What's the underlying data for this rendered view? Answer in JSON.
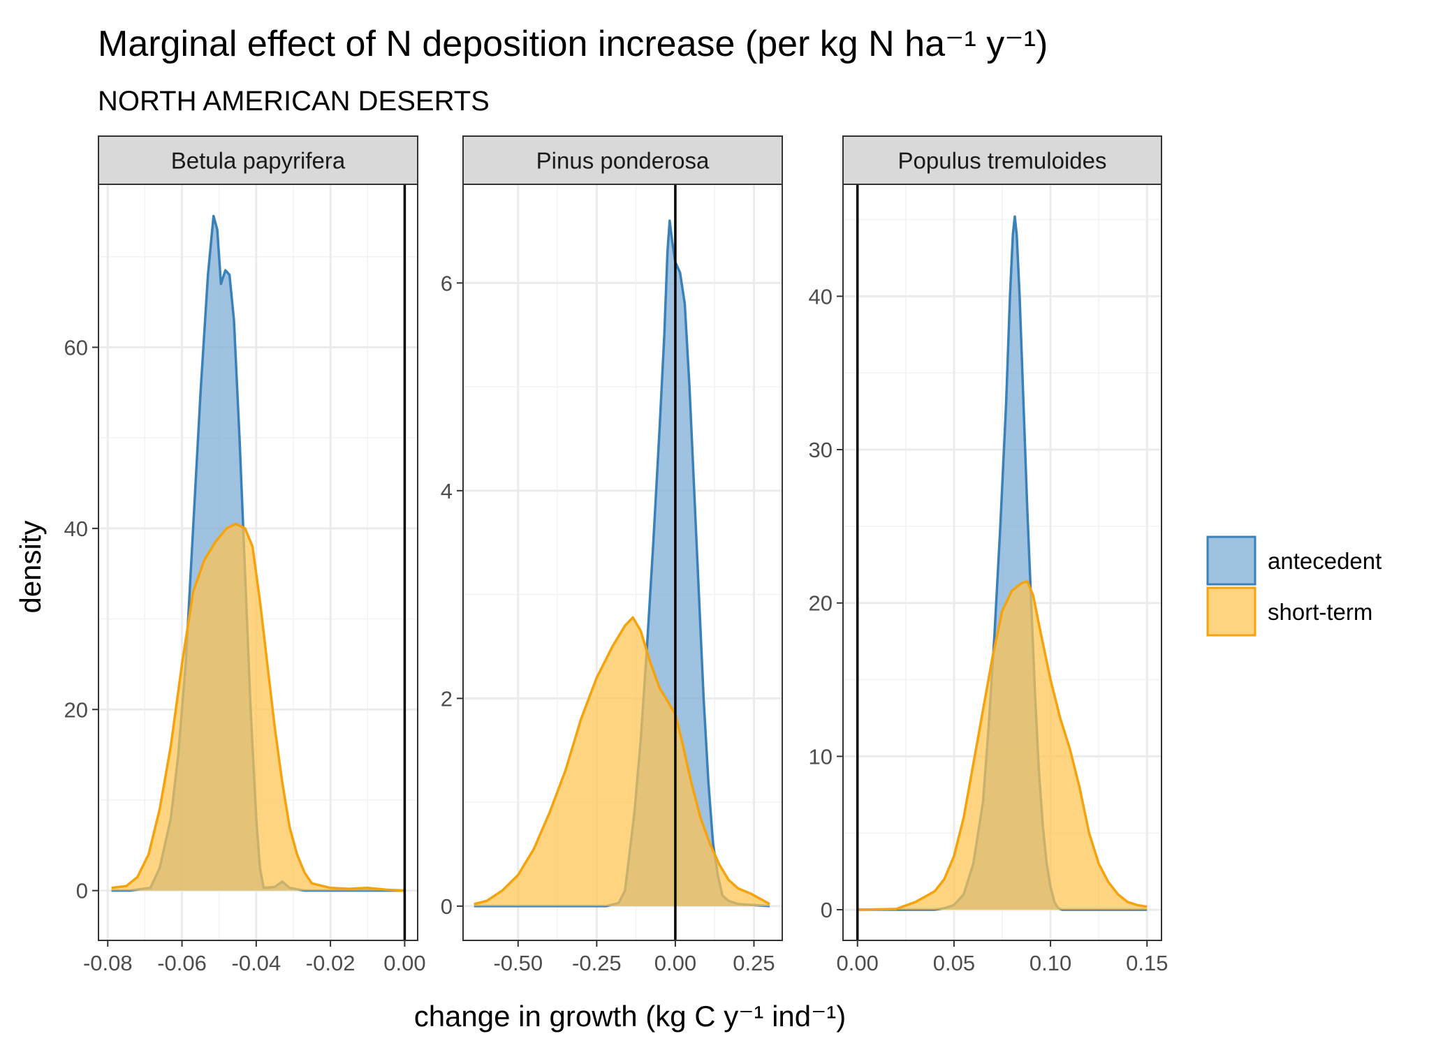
{
  "chart_data": {
    "type": "area",
    "subtype": "faceted density plot",
    "title": "Marginal effect of N deposition increase (per kg N ha⁻¹ y⁻¹)",
    "subtitle": "NORTH AMERICAN DESERTS",
    "xlabel": "change in growth (kg C y⁻¹ ind⁻¹)",
    "ylabel": "density",
    "grid": true,
    "legend_position": "right",
    "reference_line_x": 0,
    "legend": [
      {
        "name": "antecedent",
        "fill": "#7aaad6",
        "stroke": "#3a80b9"
      },
      {
        "name": "short-term",
        "fill": "#ffc34f",
        "stroke": "#f5a20c"
      }
    ],
    "panels": [
      {
        "label": "Betula papyrifera",
        "xlim": [
          -0.0825,
          0.0035
        ],
        "ylim": [
          -5.5,
          78
        ],
        "xticks": [
          {
            "v": -0.08,
            "t": "-0.08"
          },
          {
            "v": -0.06,
            "t": "-0.06"
          },
          {
            "v": -0.04,
            "t": "-0.04"
          },
          {
            "v": -0.02,
            "t": "-0.02"
          },
          {
            "v": 0.0,
            "t": "0.00"
          }
        ],
        "yticks": [
          {
            "v": 0,
            "t": "0"
          },
          {
            "v": 20,
            "t": "20"
          },
          {
            "v": 40,
            "t": "40"
          },
          {
            "v": 60,
            "t": "60"
          }
        ],
        "series": [
          {
            "name": "antecedent",
            "points": [
              [
                -0.079,
                0
              ],
              [
                -0.074,
                0
              ],
              [
                -0.0685,
                0.3
              ],
              [
                -0.066,
                2.5
              ],
              [
                -0.063,
                8
              ],
              [
                -0.061,
                15
              ],
              [
                -0.059,
                25
              ],
              [
                -0.057,
                40
              ],
              [
                -0.055,
                55
              ],
              [
                -0.053,
                68
              ],
              [
                -0.0515,
                74.5
              ],
              [
                -0.0505,
                73
              ],
              [
                -0.0495,
                67
              ],
              [
                -0.0483,
                68.5
              ],
              [
                -0.0472,
                68
              ],
              [
                -0.046,
                63
              ],
              [
                -0.0445,
                50
              ],
              [
                -0.043,
                35
              ],
              [
                -0.0415,
                20
              ],
              [
                -0.04,
                8
              ],
              [
                -0.039,
                2.5
              ],
              [
                -0.038,
                0.3
              ],
              [
                -0.035,
                0.4
              ],
              [
                -0.033,
                1
              ],
              [
                -0.031,
                0.3
              ],
              [
                -0.027,
                0
              ],
              [
                0.0,
                0
              ]
            ]
          },
          {
            "name": "short-term",
            "points": [
              [
                -0.079,
                0.3
              ],
              [
                -0.075,
                0.5
              ],
              [
                -0.072,
                1.5
              ],
              [
                -0.069,
                4
              ],
              [
                -0.066,
                9
              ],
              [
                -0.063,
                16
              ],
              [
                -0.06,
                25
              ],
              [
                -0.057,
                33
              ],
              [
                -0.054,
                36.5
              ],
              [
                -0.051,
                38.5
              ],
              [
                -0.048,
                40
              ],
              [
                -0.0455,
                40.5
              ],
              [
                -0.043,
                40
              ],
              [
                -0.041,
                38
              ],
              [
                -0.039,
                32
              ],
              [
                -0.037,
                25
              ],
              [
                -0.035,
                18
              ],
              [
                -0.033,
                12
              ],
              [
                -0.031,
                7
              ],
              [
                -0.029,
                4
              ],
              [
                -0.027,
                2
              ],
              [
                -0.025,
                0.8
              ],
              [
                -0.02,
                0.3
              ],
              [
                -0.015,
                0.2
              ],
              [
                -0.01,
                0.3
              ],
              [
                -0.005,
                0.1
              ],
              [
                0.0,
                0
              ]
            ]
          }
        ]
      },
      {
        "label": "Pinus ponderosa",
        "xlim": [
          -0.675,
          0.34
        ],
        "ylim": [
          -0.33,
          6.95
        ],
        "xticks": [
          {
            "v": -0.5,
            "t": "-0.50"
          },
          {
            "v": -0.25,
            "t": "-0.25"
          },
          {
            "v": 0.0,
            "t": "0.00"
          },
          {
            "v": 0.25,
            "t": "0.25"
          }
        ],
        "yticks": [
          {
            "v": 0,
            "t": "0"
          },
          {
            "v": 2,
            "t": "2"
          },
          {
            "v": 4,
            "t": "4"
          },
          {
            "v": 6,
            "t": "6"
          }
        ],
        "series": [
          {
            "name": "antecedent",
            "points": [
              [
                -0.64,
                0
              ],
              [
                -0.3,
                0
              ],
              [
                -0.22,
                0
              ],
              [
                -0.18,
                0.03
              ],
              [
                -0.16,
                0.15
              ],
              [
                -0.15,
                0.4
              ],
              [
                -0.13,
                0.9
              ],
              [
                -0.11,
                1.6
              ],
              [
                -0.09,
                2.5
              ],
              [
                -0.07,
                3.5
              ],
              [
                -0.05,
                4.6
              ],
              [
                -0.035,
                5.5
              ],
              [
                -0.025,
                6.3
              ],
              [
                -0.018,
                6.6
              ],
              [
                -0.01,
                6.4
              ],
              [
                0.0,
                6.2
              ],
              [
                0.015,
                6.1
              ],
              [
                0.03,
                5.8
              ],
              [
                0.045,
                5.0
              ],
              [
                0.06,
                4.0
              ],
              [
                0.075,
                3.0
              ],
              [
                0.09,
                2.0
              ],
              [
                0.105,
                1.2
              ],
              [
                0.12,
                0.6
              ],
              [
                0.135,
                0.3
              ],
              [
                0.15,
                0.1
              ],
              [
                0.17,
                0.05
              ],
              [
                0.2,
                0.02
              ],
              [
                0.3,
                0
              ]
            ]
          },
          {
            "name": "short-term",
            "points": [
              [
                -0.64,
                0.02
              ],
              [
                -0.6,
                0.05
              ],
              [
                -0.55,
                0.15
              ],
              [
                -0.5,
                0.3
              ],
              [
                -0.45,
                0.55
              ],
              [
                -0.4,
                0.9
              ],
              [
                -0.35,
                1.3
              ],
              [
                -0.3,
                1.8
              ],
              [
                -0.25,
                2.2
              ],
              [
                -0.2,
                2.5
              ],
              [
                -0.16,
                2.7
              ],
              [
                -0.135,
                2.78
              ],
              [
                -0.11,
                2.65
              ],
              [
                -0.08,
                2.35
              ],
              [
                -0.05,
                2.1
              ],
              [
                -0.02,
                1.95
              ],
              [
                0.0,
                1.85
              ],
              [
                0.02,
                1.6
              ],
              [
                0.05,
                1.2
              ],
              [
                0.08,
                0.85
              ],
              [
                0.11,
                0.6
              ],
              [
                0.14,
                0.4
              ],
              [
                0.17,
                0.25
              ],
              [
                0.2,
                0.17
              ],
              [
                0.24,
                0.12
              ],
              [
                0.3,
                0.02
              ]
            ]
          }
        ]
      },
      {
        "label": "Populus tremuloides",
        "xlim": [
          -0.0075,
          0.1575
        ],
        "ylim": [
          -2.0,
          47.3
        ],
        "xticks": [
          {
            "v": 0.0,
            "t": "0.00"
          },
          {
            "v": 0.05,
            "t": "0.05"
          },
          {
            "v": 0.1,
            "t": "0.10"
          },
          {
            "v": 0.15,
            "t": "0.15"
          }
        ],
        "yticks": [
          {
            "v": 0,
            "t": "0"
          },
          {
            "v": 10,
            "t": "10"
          },
          {
            "v": 20,
            "t": "20"
          },
          {
            "v": 30,
            "t": "30"
          },
          {
            "v": 40,
            "t": "40"
          }
        ],
        "series": [
          {
            "name": "antecedent",
            "points": [
              [
                0.0,
                0
              ],
              [
                0.04,
                0
              ],
              [
                0.045,
                0.1
              ],
              [
                0.05,
                0.3
              ],
              [
                0.055,
                1
              ],
              [
                0.06,
                3
              ],
              [
                0.065,
                7
              ],
              [
                0.068,
                12
              ],
              [
                0.071,
                18
              ],
              [
                0.074,
                25
              ],
              [
                0.077,
                33
              ],
              [
                0.079,
                40
              ],
              [
                0.0805,
                44
              ],
              [
                0.0815,
                45.2
              ],
              [
                0.0825,
                44
              ],
              [
                0.084,
                40
              ],
              [
                0.086,
                33
              ],
              [
                0.088,
                26
              ],
              [
                0.09,
                20
              ],
              [
                0.092,
                14
              ],
              [
                0.094,
                9
              ],
              [
                0.096,
                5.5
              ],
              [
                0.098,
                3
              ],
              [
                0.1,
                1.5
              ],
              [
                0.102,
                0.5
              ],
              [
                0.104,
                0.1
              ],
              [
                0.106,
                0
              ],
              [
                0.15,
                0
              ]
            ]
          },
          {
            "name": "short-term",
            "points": [
              [
                0.0,
                0
              ],
              [
                0.02,
                0.05
              ],
              [
                0.03,
                0.5
              ],
              [
                0.04,
                1.2
              ],
              [
                0.045,
                2
              ],
              [
                0.05,
                3.5
              ],
              [
                0.055,
                6
              ],
              [
                0.06,
                9.5
              ],
              [
                0.065,
                13
              ],
              [
                0.07,
                16.5
              ],
              [
                0.075,
                19.5
              ],
              [
                0.08,
                20.8
              ],
              [
                0.085,
                21.3
              ],
              [
                0.088,
                21.4
              ],
              [
                0.091,
                20.5
              ],
              [
                0.095,
                18
              ],
              [
                0.1,
                15
              ],
              [
                0.105,
                12.5
              ],
              [
                0.11,
                10.5
              ],
              [
                0.115,
                8
              ],
              [
                0.12,
                5
              ],
              [
                0.125,
                3
              ],
              [
                0.13,
                1.8
              ],
              [
                0.135,
                1
              ],
              [
                0.14,
                0.5
              ],
              [
                0.145,
                0.3
              ],
              [
                0.15,
                0.2
              ]
            ]
          }
        ]
      }
    ]
  }
}
